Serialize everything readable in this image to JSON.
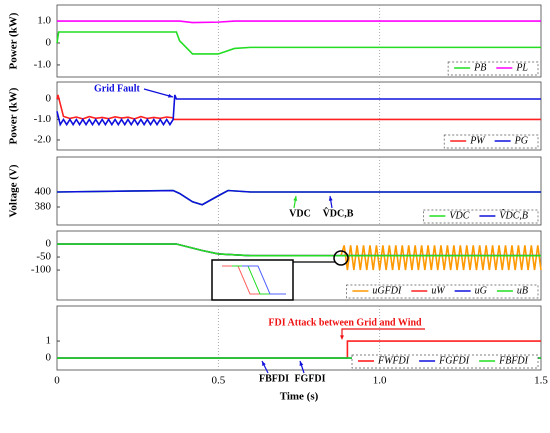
{
  "chart_data": [
    {
      "type": "line",
      "ylabel": "Power (kW)",
      "xlim": [
        0,
        1.5
      ],
      "xticks": [
        0,
        0.5,
        {
          "value": 1,
          "label": "1.0"
        },
        1.5
      ],
      "ylim": [
        -1.55,
        1.73
      ],
      "yticks": [
        {
          "value": 1,
          "label": "1.0"
        },
        0,
        {
          "value": -1,
          "label": "-1.0"
        }
      ],
      "grid": true,
      "series": [
        {
          "name": "PB",
          "color": "#22dd22",
          "x": [
            0,
            0.005,
            0.37,
            0.38,
            0.4,
            0.42,
            0.5,
            0.55,
            0.6,
            1.5
          ],
          "values": [
            0,
            0.5,
            0.5,
            0.1,
            -0.2,
            -0.5,
            -0.5,
            -0.25,
            -0.2,
            -0.2
          ]
        },
        {
          "name": "PL",
          "color": "#ff00ff",
          "x": [
            0,
            0.38,
            0.42,
            0.5,
            0.55,
            1.5
          ],
          "values": [
            1.0,
            1.0,
            0.93,
            0.95,
            1.0,
            1.0
          ]
        }
      ]
    },
    {
      "type": "line",
      "ylabel": "Power (kW)",
      "xlim": [
        0,
        1.5
      ],
      "xticks": [
        0,
        0.5,
        {
          "value": 1,
          "label": "1.0"
        },
        1.5
      ],
      "ylim": [
        -2.49,
        0.83
      ],
      "yticks": [
        0,
        {
          "value": -1,
          "label": "-1.0"
        },
        {
          "value": -2,
          "label": "-2.0"
        }
      ],
      "grid": true,
      "annotations": [
        {
          "text": "Grid Fault",
          "color": "#1010dd"
        }
      ],
      "series": [
        {
          "name": "PW",
          "color": "#ff2020",
          "x": [
            0,
            0.003,
            0.02,
            0.04,
            0.06,
            0.08,
            0.1,
            0.12,
            0.14,
            0.16,
            0.18,
            0.2,
            0.22,
            0.24,
            0.26,
            0.28,
            0.3,
            0.32,
            0.34,
            0.36,
            0.362,
            1.5
          ],
          "values": [
            0,
            0.2,
            -0.85,
            -0.95,
            -0.88,
            -0.97,
            -0.86,
            -0.94,
            -0.9,
            -0.96,
            -0.87,
            -0.93,
            -0.89,
            -0.97,
            -0.86,
            -0.95,
            -0.9,
            -0.94,
            -0.88,
            -0.92,
            -1.0,
            -1.0
          ]
        },
        {
          "name": "PG",
          "color": "#1010dd",
          "x": [
            0,
            0.01,
            0.02,
            0.03,
            0.04,
            0.05,
            0.06,
            0.07,
            0.08,
            0.09,
            0.1,
            0.11,
            0.12,
            0.13,
            0.14,
            0.15,
            0.16,
            0.17,
            0.18,
            0.19,
            0.2,
            0.21,
            0.22,
            0.23,
            0.24,
            0.25,
            0.26,
            0.27,
            0.28,
            0.29,
            0.3,
            0.31,
            0.32,
            0.33,
            0.34,
            0.35,
            0.36,
            0.365,
            0.37,
            1.5
          ],
          "values": [
            -0.6,
            -1.25,
            -1.0,
            -1.25,
            -1.0,
            -1.25,
            -1.0,
            -1.25,
            -1.0,
            -1.25,
            -1.0,
            -1.25,
            -1.0,
            -1.25,
            -1.0,
            -1.25,
            -1.0,
            -1.25,
            -1.0,
            -1.25,
            -1.0,
            -1.25,
            -1.0,
            -1.25,
            -1.0,
            -1.25,
            -1.0,
            -1.25,
            -1.0,
            -1.25,
            -1.0,
            -1.25,
            -1.0,
            -1.25,
            -1.0,
            -1.25,
            -1.0,
            0.2,
            0,
            0
          ]
        }
      ]
    },
    {
      "type": "line",
      "ylabel": "Voltage (V)",
      "xlim": [
        0,
        1.5
      ],
      "xticks": [
        0,
        0.5,
        {
          "value": 1,
          "label": "1.0"
        },
        1.5
      ],
      "ylim": [
        356,
        446.7
      ],
      "yticks": [
        380,
        400
      ],
      "grid": true,
      "annotations": [
        {
          "text": "VDC",
          "color": "#000"
        },
        {
          "text": "V̂DC,B",
          "color": "#000"
        }
      ],
      "series": [
        {
          "name": "VDC",
          "color": "#22dd22",
          "x": [
            0,
            0.36,
            0.38,
            0.42,
            0.45,
            0.5,
            0.53,
            0.6,
            1.5
          ],
          "values": [
            400,
            402,
            398,
            387,
            383,
            395,
            402,
            400,
            400
          ]
        },
        {
          "name": "V̂DC,B",
          "color": "#1010dd",
          "x": [
            0,
            0.36,
            0.38,
            0.42,
            0.45,
            0.5,
            0.53,
            0.6,
            1.5
          ],
          "values": [
            400,
            402,
            398,
            387,
            383,
            395,
            402,
            400,
            400
          ]
        }
      ]
    },
    {
      "type": "line",
      "xlim": [
        0,
        1.5
      ],
      "xticks": [
        0,
        0.5,
        {
          "value": 1,
          "label": "1.0"
        },
        1.5
      ],
      "ylim": [
        -215,
        50
      ],
      "yticks": [
        0,
        -50,
        -100
      ],
      "grid": true,
      "series": [
        {
          "name": "uGFDI",
          "color": "#ff9900",
          "x": [
            0.88,
            0.89,
            0.9,
            0.91,
            0.92,
            0.93,
            0.94,
            0.95,
            0.96,
            0.97,
            0.98,
            0.99,
            1.0,
            1.01,
            1.02,
            1.03,
            1.04,
            1.05,
            1.06,
            1.07,
            1.08,
            1.09,
            1.1,
            1.11,
            1.12,
            1.13,
            1.14,
            1.15,
            1.16,
            1.17,
            1.18,
            1.19,
            1.2,
            1.21,
            1.22,
            1.23,
            1.24,
            1.25,
            1.26,
            1.27,
            1.28,
            1.29,
            1.3,
            1.31,
            1.32,
            1.33,
            1.34,
            1.35,
            1.36,
            1.37,
            1.38,
            1.39,
            1.4,
            1.41,
            1.42,
            1.43,
            1.44,
            1.45,
            1.46,
            1.47,
            1.48,
            1.49,
            1.5
          ],
          "values": [
            -45,
            -5,
            -100,
            -5,
            -100,
            -5,
            -100,
            -5,
            -100,
            -5,
            -100,
            -5,
            -100,
            -5,
            -100,
            -5,
            -100,
            -5,
            -100,
            -5,
            -100,
            -5,
            -100,
            -5,
            -100,
            -5,
            -100,
            -5,
            -100,
            -5,
            -100,
            -5,
            -100,
            -5,
            -100,
            -5,
            -100,
            -5,
            -100,
            -5,
            -100,
            -5,
            -100,
            -5,
            -100,
            -5,
            -100,
            -5,
            -100,
            -5,
            -100,
            -5,
            -100,
            -5,
            -100,
            -5,
            -100,
            -5,
            -100,
            -5,
            -100,
            -5,
            -100
          ]
        },
        {
          "name": "uW",
          "color": "#ff2020",
          "x": [
            0,
            0.37,
            0.45,
            0.5,
            0.6,
            1.5
          ],
          "values": [
            0,
            0,
            -25,
            -38,
            -45,
            -45
          ]
        },
        {
          "name": "uG",
          "color": "#1010dd",
          "x": [
            0,
            0.37,
            0.45,
            0.5,
            0.6,
            1.5
          ],
          "values": [
            0,
            0,
            -25,
            -38,
            -45,
            -45
          ]
        },
        {
          "name": "uB",
          "color": "#22dd22",
          "x": [
            0,
            0.37,
            0.45,
            0.5,
            0.6,
            1.5
          ],
          "values": [
            0,
            0,
            -25,
            -38,
            -45,
            -45
          ]
        }
      ]
    },
    {
      "type": "line",
      "xlabel": "Time (s)",
      "xlim": [
        0,
        1.5
      ],
      "xticks": [
        0,
        0.5,
        {
          "value": 1,
          "label": "1.0"
        },
        1.5
      ],
      "ylim": [
        -0.7,
        3.06
      ],
      "yticks": [
        1,
        0
      ],
      "grid": true,
      "annotations": [
        {
          "text": "FDI Attack between Grid and Wind",
          "color": "#ee1111"
        },
        {
          "text": "FBFDI",
          "color": "#000"
        },
        {
          "text": "FGFDI",
          "color": "#000"
        }
      ],
      "series": [
        {
          "name": "FWFDI",
          "color": "#ff2020",
          "x": [
            0,
            0.9,
            0.9,
            1.5
          ],
          "values": [
            0,
            0,
            1,
            1
          ]
        },
        {
          "name": "FGFDI",
          "color": "#1010dd",
          "x": [
            0,
            1.5
          ],
          "values": [
            0,
            0
          ]
        },
        {
          "name": "FBFDI",
          "color": "#22dd22",
          "x": [
            0,
            1.5
          ],
          "values": [
            0,
            0
          ]
        }
      ]
    }
  ]
}
